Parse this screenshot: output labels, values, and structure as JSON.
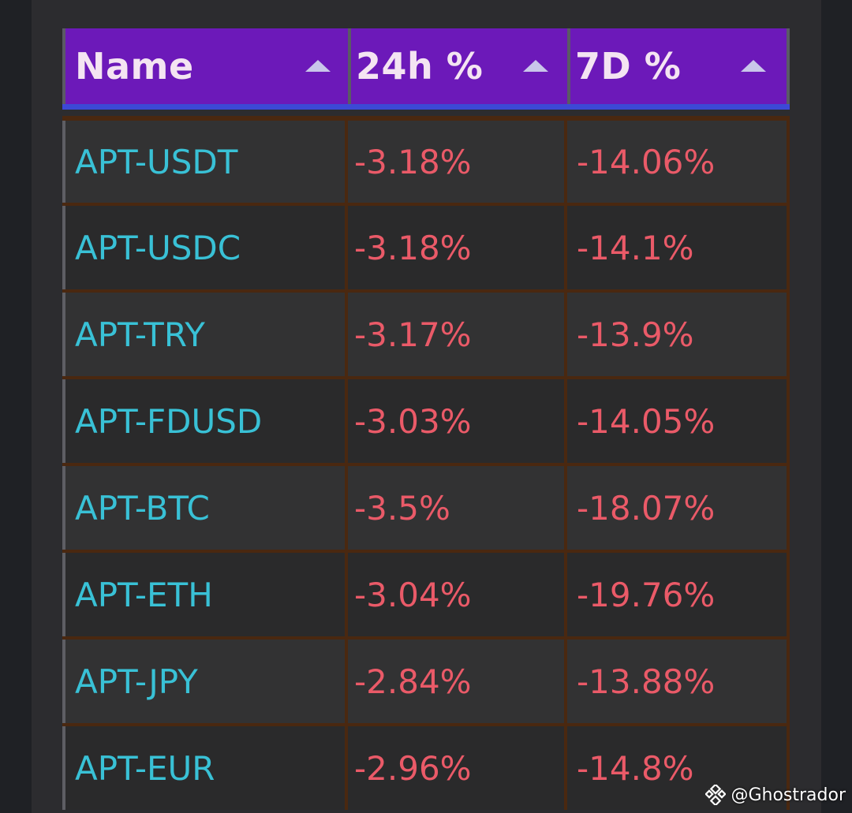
{
  "table": {
    "columns": [
      {
        "label": "Name"
      },
      {
        "label": "24h %"
      },
      {
        "label": "7D %"
      }
    ],
    "rows": [
      {
        "name": "APT-USDT",
        "change_24h": "-3.18%",
        "change_7d": "-14.06%"
      },
      {
        "name": "APT-USDC",
        "change_24h": "-3.18%",
        "change_7d": "-14.1%"
      },
      {
        "name": "APT-TRY",
        "change_24h": "-3.17%",
        "change_7d": "-13.9%"
      },
      {
        "name": "APT-FDUSD",
        "change_24h": "-3.03%",
        "change_7d": "-14.05%"
      },
      {
        "name": "APT-BTC",
        "change_24h": "-3.5%",
        "change_7d": "-18.07%"
      },
      {
        "name": "APT-ETH",
        "change_24h": "-3.04%",
        "change_7d": "-19.76%"
      },
      {
        "name": "APT-JPY",
        "change_24h": "-2.84%",
        "change_7d": "-13.88%"
      },
      {
        "name": "APT-EUR",
        "change_24h": "-2.96%",
        "change_7d": "-14.8%"
      }
    ]
  },
  "watermark": {
    "text": "@Ghostrador",
    "icon": "binance-logo-icon"
  },
  "colors": {
    "header_bg": "#6c19b9",
    "header_underline": "#3c49d6",
    "name_text": "#39c1d6",
    "negative_text": "#ea5a68",
    "row_border": "#4a2810"
  }
}
